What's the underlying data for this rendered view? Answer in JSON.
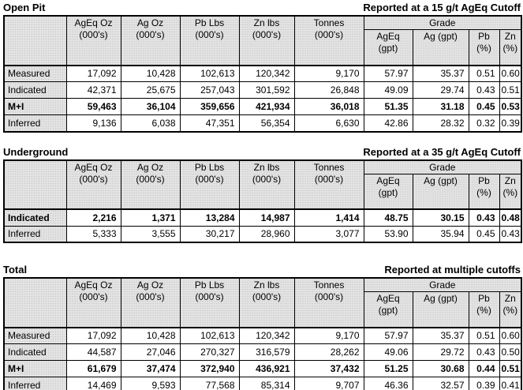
{
  "column_headers": {
    "corner": "",
    "quantity": [
      {
        "l1": "AgEq Oz",
        "l2": "(000's)"
      },
      {
        "l1": "Ag Oz",
        "l2": "(000's)"
      },
      {
        "l1": "Pb Lbs",
        "l2": "(000's)"
      },
      {
        "l1": "Zn lbs",
        "l2": "(000's)"
      },
      {
        "l1": "Tonnes",
        "l2": "(000's)"
      }
    ],
    "grade_group": "Grade",
    "grade": [
      {
        "l1": "AgEq",
        "l2": "(gpt)"
      },
      {
        "l1": "Ag (gpt)",
        "l2": ""
      },
      {
        "l1": "Pb",
        "l2": "(%)"
      },
      {
        "l1": "Zn",
        "l2": "(%)"
      }
    ]
  },
  "tables": [
    {
      "name": "open-pit",
      "title": "Open Pit",
      "cutoff_note": "Reported at a 15 g/t AgEq Cutoff",
      "rows": [
        {
          "label": "Measured",
          "bold": false,
          "values": [
            "17,092",
            "10,428",
            "102,613",
            "120,342",
            "9,170",
            "57.97",
            "35.37",
            "0.51",
            "0.60"
          ]
        },
        {
          "label": "Indicated",
          "bold": false,
          "values": [
            "42,371",
            "25,675",
            "257,043",
            "301,592",
            "26,848",
            "49.09",
            "29.74",
            "0.43",
            "0.51"
          ]
        },
        {
          "label": "M+I",
          "bold": true,
          "values": [
            "59,463",
            "36,104",
            "359,656",
            "421,934",
            "36,018",
            "51.35",
            "31.18",
            "0.45",
            "0.53"
          ]
        },
        {
          "label": "Inferred",
          "bold": false,
          "values": [
            "9,136",
            "6,038",
            "47,351",
            "56,354",
            "6,630",
            "42.86",
            "28.32",
            "0.32",
            "0.39"
          ]
        }
      ]
    },
    {
      "name": "underground",
      "title": "Underground",
      "cutoff_note": "Reported at a 35 g/t AgEq Cutoff",
      "rows": [
        {
          "label": "Indicated",
          "bold": true,
          "values": [
            "2,216",
            "1,371",
            "13,284",
            "14,987",
            "1,414",
            "48.75",
            "30.15",
            "0.43",
            "0.48"
          ]
        },
        {
          "label": "Inferred",
          "bold": false,
          "values": [
            "5,333",
            "3,555",
            "30,217",
            "28,960",
            "3,077",
            "53.90",
            "35.94",
            "0.45",
            "0.43"
          ]
        }
      ]
    },
    {
      "name": "total",
      "title": "Total",
      "cutoff_note": "Reported at multiple cutoffs",
      "rows": [
        {
          "label": "Measured",
          "bold": false,
          "values": [
            "17,092",
            "10,428",
            "102,613",
            "120,342",
            "9,170",
            "57.97",
            "35.37",
            "0.51",
            "0.60"
          ]
        },
        {
          "label": "Indicated",
          "bold": false,
          "values": [
            "44,587",
            "27,046",
            "270,327",
            "316,579",
            "28,262",
            "49.06",
            "29.72",
            "0.43",
            "0.50"
          ]
        },
        {
          "label": "M+I",
          "bold": true,
          "values": [
            "61,679",
            "37,474",
            "372,940",
            "436,921",
            "37,432",
            "51.25",
            "30.68",
            "0.44",
            "0.51"
          ]
        },
        {
          "label": "Inferred",
          "bold": false,
          "values": [
            "14,469",
            "9,593",
            "77,568",
            "85,314",
            "9,707",
            "46.36",
            "32.57",
            "0.39",
            "0.41"
          ]
        }
      ]
    }
  ],
  "colors": {
    "border": "#000000",
    "header_fill": "#e3e3e3",
    "text": "#000000",
    "background": "#ffffff"
  }
}
